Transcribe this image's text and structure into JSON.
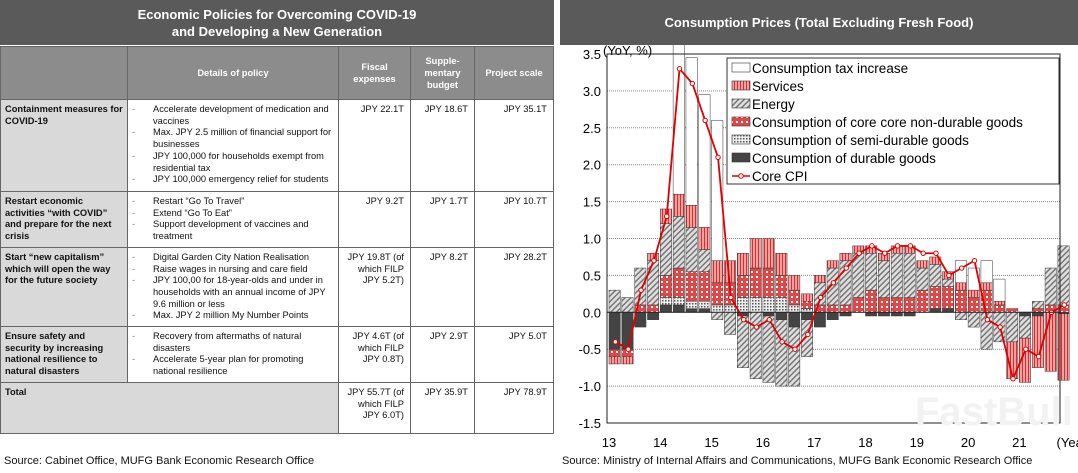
{
  "table": {
    "title": "Economic Policies for Overcoming COVID-19 and Developing a New Generation",
    "headers": [
      "",
      "Details of policy",
      "Fiscal expenses",
      "Supple-mentary budget",
      "Project scale"
    ],
    "rows": [
      {
        "category": "Containment measures for COVID-19",
        "details": [
          "Accelerate development of medication and vaccines",
          "Max. JPY 2.5 million of financial support for businesses",
          "JPY 100,000 for households exempt from residential tax",
          "JPY 100,000 emergency relief for students"
        ],
        "fiscal": "JPY 22.1T",
        "supplementary": "JPY 18.6T",
        "project": "JPY 35.1T"
      },
      {
        "category": "Restart economic activities “with COVID” and prepare for the next crisis",
        "details": [
          "Restart “Go To Travel”",
          "Extend “Go To Eat”",
          "Support development of vaccines and treatment"
        ],
        "fiscal": "JPY 9.2T",
        "supplementary": "JPY 1.7T",
        "project": "JPY 10.7T"
      },
      {
        "category": "Start “new capitalism” which will open the way for the future society",
        "details": [
          "Digital Garden City Nation Realisation",
          "Raise wages in nursing and care field",
          "JPY 100,00 for 18-year-olds and under in households with an annual income of JPY 9.6 million or less",
          "Max. JPY 2 million My Number Points"
        ],
        "fiscal": "JPY 19.8T (of which FILP JPY 5.2T)",
        "supplementary": "JPY 8.2T",
        "project": "JPY 28.2T"
      },
      {
        "category": "Ensure safety and security by increasing national resilience to natural disasters",
        "details": [
          "Recovery from aftermaths of natural disasters",
          "Accelerate 5-year plan for promoting national resilience"
        ],
        "fiscal": "JPY 4.6T (of which FILP JPY 0.8T)",
        "supplementary": "JPY 2.9T",
        "project": "JPY 5.0T"
      }
    ],
    "total": {
      "label": "Total",
      "fiscal": "JPY 55.7T (of which FILP JPY 6.0T)",
      "supplementary": "JPY 35.9T",
      "project": "JPY 78.9T"
    },
    "source": "Source: Cabinet Office, MUFG Bank Economic Research Office"
  },
  "chart_data": {
    "type": "bar",
    "title": "Consumption Prices (Total Excluding Fresh Food)",
    "ylabel": "(YoY, %)",
    "xlabel": "(Year)",
    "ylim": [
      -1.5,
      3.5
    ],
    "yticks": [
      "3.5",
      "3.0",
      "2.5",
      "2.0",
      "1.5",
      "1.0",
      "0.5",
      "0.0",
      "-0.5",
      "-1.0",
      "-1.5"
    ],
    "xticks": [
      "13",
      "14",
      "15",
      "16",
      "17",
      "18",
      "19",
      "20",
      "21"
    ],
    "grid": true,
    "legend_placement": "top-right",
    "categories": [
      "13Q1",
      "13Q2",
      "13Q3",
      "13Q4",
      "14Q1",
      "14Q2",
      "14Q3",
      "14Q4",
      "15Q1",
      "15Q2",
      "15Q3",
      "15Q4",
      "16Q1",
      "16Q2",
      "16Q3",
      "16Q4",
      "17Q1",
      "17Q2",
      "17Q3",
      "17Q4",
      "18Q1",
      "18Q2",
      "18Q3",
      "18Q4",
      "19Q1",
      "19Q2",
      "19Q3",
      "19Q4",
      "20Q1",
      "20Q2",
      "20Q3",
      "20Q4",
      "21Q1",
      "21Q2",
      "21Q3",
      "21Q4"
    ],
    "series": [
      {
        "name": "Consumption tax increase",
        "kind": "bar",
        "values": [
          0,
          0,
          0,
          0,
          0,
          2.1,
          2.0,
          1.8,
          1.9,
          0,
          0,
          0,
          0,
          0,
          0,
          0,
          0,
          0,
          0,
          0,
          0,
          0,
          0,
          0,
          0,
          0,
          0,
          0.3,
          0.3,
          0.3,
          0.3,
          0,
          0,
          0,
          0,
          0
        ]
      },
      {
        "name": "Services",
        "kind": "bar",
        "values": [
          -0.1,
          -0.1,
          0,
          0.1,
          0.2,
          0.3,
          0.3,
          0.3,
          0.3,
          0.3,
          0.3,
          0.4,
          0.4,
          0.3,
          0.2,
          0.1,
          0.1,
          0.1,
          0.1,
          0.1,
          0.1,
          0.1,
          0.1,
          0.1,
          0.1,
          0.1,
          0.1,
          0.1,
          0.1,
          0.1,
          0.05,
          -0.5,
          -0.6,
          -0.7,
          -0.8,
          -0.9
        ]
      },
      {
        "name": "Energy",
        "kind": "bar",
        "values": [
          0.3,
          0.2,
          0.5,
          0.6,
          0.7,
          0.7,
          0.6,
          0.3,
          -0.1,
          -0.3,
          -0.7,
          -0.9,
          -0.9,
          -0.9,
          -0.8,
          -0.5,
          0.3,
          0.5,
          0.6,
          0.6,
          0.5,
          0.5,
          0.6,
          0.6,
          0.3,
          0.3,
          0.1,
          -0.1,
          -0.2,
          -0.5,
          -0.4,
          -0.4,
          -0.3,
          0.1,
          0.5,
          0.8
        ]
      },
      {
        "name": "Consumption of core core non-durable goods",
        "kind": "bar",
        "values": [
          -0.1,
          -0.1,
          0.1,
          0.1,
          0.3,
          0.4,
          0.4,
          0.4,
          0.3,
          0.3,
          0.3,
          0.4,
          0.4,
          0.3,
          0.2,
          0.1,
          0.1,
          0.1,
          0.1,
          0.2,
          0.3,
          0.2,
          0.2,
          0.2,
          0.3,
          0.3,
          0.3,
          0.3,
          0.2,
          0.3,
          0.1,
          0.05,
          0,
          0.05,
          0.1,
          0.1
        ]
      },
      {
        "name": "Consumption of semi-durable goods",
        "kind": "bar",
        "values": [
          0,
          0,
          0,
          0,
          0.1,
          0.1,
          0.1,
          0.1,
          0.1,
          0.1,
          0.2,
          0.2,
          0.2,
          0.2,
          0.1,
          0.05,
          0,
          0,
          0,
          0,
          0,
          0,
          0,
          0,
          0,
          0,
          0,
          0,
          0,
          0,
          0,
          0,
          0,
          0,
          0,
          0
        ]
      },
      {
        "name": "Consumption of durable goods",
        "kind": "bar",
        "values": [
          -0.5,
          -0.5,
          -0.2,
          -0.1,
          0.1,
          0.1,
          0.05,
          0.05,
          0,
          0,
          -0.05,
          0,
          -0.05,
          -0.1,
          -0.2,
          -0.1,
          -0.2,
          -0.1,
          -0.05,
          0,
          -0.05,
          -0.05,
          -0.05,
          -0.05,
          0,
          0.05,
          0.05,
          0,
          0,
          0,
          0,
          0,
          -0.05,
          -0.05,
          0,
          -0.02
        ]
      },
      {
        "name": "Core CPI",
        "kind": "line",
        "values": [
          -0.4,
          -0.5,
          0.3,
          0.7,
          1.3,
          3.3,
          3.1,
          2.6,
          2.1,
          0.2,
          -0.1,
          -0.2,
          -0.1,
          -0.4,
          -0.5,
          -0.3,
          0.2,
          0.4,
          0.6,
          0.8,
          0.9,
          0.8,
          0.9,
          0.9,
          0.8,
          0.8,
          0.5,
          0.6,
          0.7,
          -0.1,
          -0.2,
          -0.9,
          -0.5,
          -0.6,
          0.0,
          0.1
        ]
      }
    ],
    "colors": {
      "tax": "#ffffff",
      "services": "#e8787a",
      "energy": "#bdbdbd",
      "nondurable": "#e05a5a",
      "semidurable": "#9a9a9a",
      "durable": "#404040",
      "core_cpi": "#e00000"
    },
    "source": "Source: Ministry of Internal Affairs and Communications, MUFG Bank Economic Research Office",
    "watermark": "FastBull"
  }
}
